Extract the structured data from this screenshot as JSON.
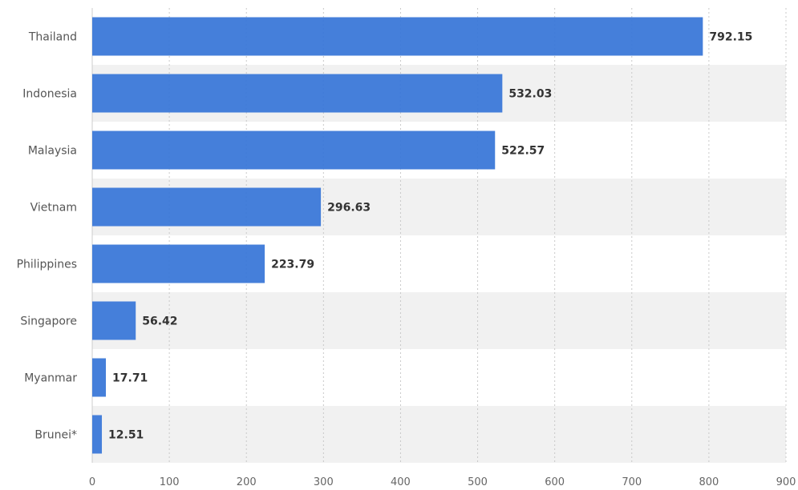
{
  "chart_data": {
    "type": "bar",
    "orientation": "horizontal",
    "title": "",
    "xlabel": "",
    "ylabel": "",
    "categories": [
      "Thailand",
      "Indonesia",
      "Malaysia",
      "Vietnam",
      "Philippines",
      "Singapore",
      "Myanmar",
      "Brunei*"
    ],
    "values": [
      792.15,
      532.03,
      522.57,
      296.63,
      223.79,
      56.42,
      17.71,
      12.51
    ],
    "value_labels": [
      "792.15",
      "532.03",
      "522.57",
      "296.63",
      "223.79",
      "56.42",
      "17.71",
      "12.51"
    ],
    "xlim": [
      0,
      900
    ],
    "x_ticks": [
      0,
      100,
      200,
      300,
      400,
      500,
      600,
      700,
      800,
      900
    ],
    "x_tick_labels": [
      "0",
      "100",
      "200",
      "300",
      "400",
      "500",
      "600",
      "700",
      "800",
      "900"
    ],
    "grid": true,
    "legend": "none",
    "colors": {
      "bar": "#3b78d8",
      "band": "#f1f1f1",
      "grid": "#c8c8c8"
    }
  }
}
